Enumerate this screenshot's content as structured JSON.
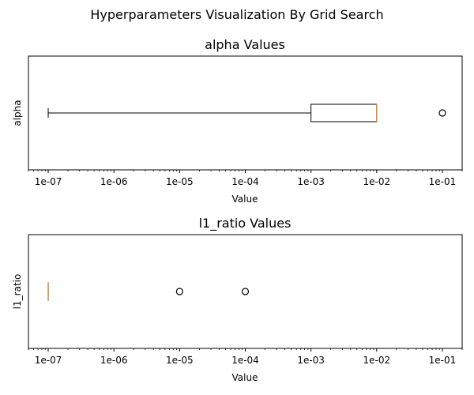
{
  "figure": {
    "suptitle": "Hyperparameters Visualization By Grid Search"
  },
  "chart_data": [
    {
      "type": "boxplot",
      "orientation": "horizontal",
      "title": "alpha Values",
      "xlabel": "Value",
      "ylabel": "alpha",
      "xscale": "log",
      "xlim": [
        5e-08,
        0.2
      ],
      "xticks": [
        1e-07,
        1e-06,
        1e-05,
        0.0001,
        0.001,
        0.01,
        0.1
      ],
      "xtick_labels": [
        "1e-07",
        "1e-06",
        "1e-05",
        "1e-04",
        "1e-03",
        "1e-02",
        "1e-01"
      ],
      "box": {
        "whisker_low": 1e-07,
        "q1": 0.001,
        "median": 0.01,
        "q3": 0.01,
        "whisker_high": 0.01
      },
      "outliers": [
        0.1
      ],
      "grid": false
    },
    {
      "type": "boxplot",
      "orientation": "horizontal",
      "title": "l1_ratio Values",
      "xlabel": "Value",
      "ylabel": "l1_ratio",
      "xscale": "log",
      "xlim": [
        5e-08,
        0.2
      ],
      "xticks": [
        1e-07,
        1e-06,
        1e-05,
        0.0001,
        0.001,
        0.01,
        0.1
      ],
      "xtick_labels": [
        "1e-07",
        "1e-06",
        "1e-05",
        "1e-04",
        "1e-03",
        "1e-02",
        "1e-01"
      ],
      "box": {
        "whisker_low": 1e-07,
        "q1": 1e-07,
        "median": 1e-07,
        "q3": 1e-07,
        "whisker_high": 1e-07
      },
      "outliers": [
        1e-05,
        0.0001
      ],
      "grid": false
    }
  ],
  "colors": {
    "box": "#000000",
    "median": "#e08a3c",
    "axes": "#000000"
  }
}
